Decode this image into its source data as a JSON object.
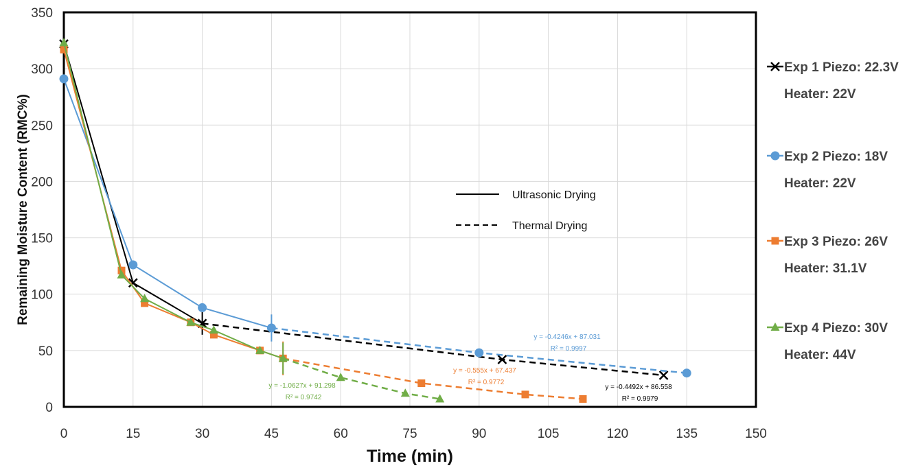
{
  "chart_data": {
    "type": "line",
    "xlabel": "Time (min)",
    "ylabel": "Remaining Moisture Content (RMC%)",
    "xlim": [
      0,
      150
    ],
    "ylim": [
      0,
      350
    ],
    "xticks": [
      0,
      15,
      30,
      45,
      60,
      75,
      90,
      105,
      120,
      135,
      150
    ],
    "yticks": [
      0,
      50,
      100,
      150,
      200,
      250,
      300,
      350
    ],
    "grid": true,
    "legend_position": "right",
    "series": [
      {
        "name": "Exp 1 Piezo: 22.3V",
        "name_line2": "Heater: 22V",
        "color": "#000000",
        "marker": "x",
        "ultrasonic": {
          "x": [
            0,
            15,
            30
          ],
          "y": [
            322,
            110,
            74
          ]
        },
        "thermal": {
          "x": [
            30,
            95,
            130
          ],
          "y": [
            74,
            42,
            28
          ]
        },
        "error_bars": [
          {
            "x": 30,
            "y": 74,
            "err": 10
          }
        ],
        "trend": {
          "equation": "y = -0.4492x + 86.558",
          "r2": "R² = 0.9979"
        }
      },
      {
        "name": "Exp 2 Piezo: 18V",
        "name_line2": "Heater: 22V",
        "color": "#5B9BD5",
        "marker": "circle",
        "ultrasonic": {
          "x": [
            0,
            15,
            30,
            45
          ],
          "y": [
            291,
            126,
            88,
            70
          ]
        },
        "thermal": {
          "x": [
            45,
            90,
            135
          ],
          "y": [
            70,
            48,
            30
          ]
        },
        "error_bars": [
          {
            "x": 45,
            "y": 70,
            "err": 12
          }
        ],
        "trend": {
          "equation": "y = -0.4246x + 87.031",
          "r2": "R² = 0.9997"
        }
      },
      {
        "name": "Exp 3 Piezo: 26V",
        "name_line2": "Heater: 31.1V",
        "color": "#ED7D31",
        "marker": "square",
        "ultrasonic": {
          "x": [
            0,
            12.5,
            17.5,
            27.5,
            32.5,
            42.5,
            47.5
          ],
          "y": [
            317,
            121,
            92,
            75,
            64,
            50,
            43
          ]
        },
        "thermal": {
          "x": [
            47.5,
            77.5,
            100,
            112.5
          ],
          "y": [
            43,
            21,
            11,
            7
          ]
        },
        "error_bars": [
          {
            "x": 47.5,
            "y": 43,
            "err": 15
          }
        ],
        "trend": {
          "equation": "y = -0.555x + 67.437",
          "r2": "R² = 0.9772"
        }
      },
      {
        "name": "Exp 4 Piezo: 30V",
        "name_line2": "Heater: 44V",
        "color": "#70AD47",
        "marker": "triangle",
        "ultrasonic": {
          "x": [
            0,
            12.5,
            17.5,
            27.5,
            32.5,
            42.5,
            47.5
          ],
          "y": [
            323,
            117,
            96,
            75,
            68,
            50,
            43
          ]
        },
        "thermal": {
          "x": [
            47.5,
            60,
            74,
            81.5
          ],
          "y": [
            43,
            26,
            12,
            7
          ]
        },
        "error_bars": [
          {
            "x": 47.5,
            "y": 43,
            "err": 14
          }
        ],
        "trend": {
          "equation": "y = -1.0627x + 91.298",
          "r2": "R² = 0.9742"
        }
      }
    ],
    "line_style_legend": [
      {
        "label": "Ultrasonic Drying",
        "dash": false
      },
      {
        "label": "Thermal Drying",
        "dash": true
      }
    ]
  }
}
